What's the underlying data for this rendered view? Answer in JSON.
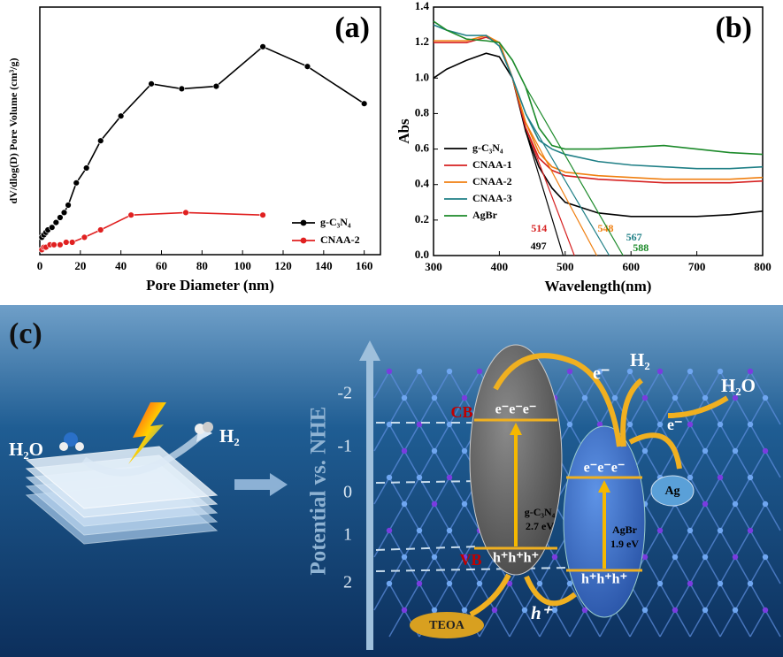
{
  "chart_data": [
    {
      "type": "line",
      "panel_label": "(a)",
      "xlabel": "Pore Diameter (nm)",
      "ylabel": "dV/dlog(D) Pore Volume (cm³/g)",
      "xlim": [
        0,
        168
      ],
      "ylim": [
        0,
        1
      ],
      "xticks": [
        0,
        20,
        40,
        60,
        80,
        100,
        120,
        140,
        160
      ],
      "markers": true,
      "legend": "lower right",
      "series": [
        {
          "name": "g-C₃N₄",
          "color": "#000000",
          "x": [
            1,
            2,
            3,
            4,
            6,
            8,
            10,
            12,
            14,
            18,
            23,
            30,
            40,
            55,
            70,
            87,
            110,
            132,
            160
          ],
          "values": [
            0.07,
            0.08,
            0.09,
            0.1,
            0.11,
            0.13,
            0.15,
            0.17,
            0.2,
            0.29,
            0.35,
            0.46,
            0.56,
            0.69,
            0.67,
            0.68,
            0.84,
            0.76,
            0.61
          ]
        },
        {
          "name": "CNAA-2",
          "color": "#e02020",
          "x": [
            1,
            2,
            3,
            5,
            7,
            10,
            13,
            16,
            22,
            30,
            45,
            72,
            110
          ],
          "values": [
            0.02,
            0.03,
            0.03,
            0.04,
            0.04,
            0.04,
            0.05,
            0.05,
            0.07,
            0.1,
            0.16,
            0.17,
            0.16
          ]
        }
      ]
    },
    {
      "type": "line",
      "panel_label": "(b)",
      "xlabel": "Wavelength(nm)",
      "ylabel": "Abs",
      "xlim": [
        300,
        800
      ],
      "ylim": [
        0,
        1.4
      ],
      "xticks": [
        300,
        400,
        500,
        600,
        700,
        800
      ],
      "yticks": [
        {
          "value": 0,
          "label": "0.0"
        },
        0.2,
        0.4,
        0.6,
        0.8,
        {
          "value": 1,
          "label": "1.0"
        },
        1.2,
        1.4
      ],
      "markers": false,
      "legend": "center left",
      "x": [
        300,
        320,
        350,
        380,
        400,
        420,
        440,
        460,
        480,
        500,
        550,
        600,
        650,
        700,
        750,
        800
      ],
      "series": [
        {
          "name": "g-C₃N₄",
          "color": "#000000",
          "values": [
            1.0,
            1.05,
            1.1,
            1.14,
            1.12,
            1.0,
            0.7,
            0.5,
            0.38,
            0.3,
            0.24,
            0.22,
            0.22,
            0.22,
            0.23,
            0.25
          ]
        },
        {
          "name": "CNAA-1",
          "color": "#d62020",
          "values": [
            1.2,
            1.2,
            1.2,
            1.23,
            1.2,
            1.0,
            0.72,
            0.55,
            0.48,
            0.45,
            0.43,
            0.42,
            0.41,
            0.41,
            0.41,
            0.42
          ]
        },
        {
          "name": "CNAA-2",
          "color": "#f07f10",
          "values": [
            1.21,
            1.21,
            1.21,
            1.24,
            1.2,
            1.0,
            0.75,
            0.58,
            0.5,
            0.47,
            0.45,
            0.44,
            0.43,
            0.43,
            0.43,
            0.44
          ]
        },
        {
          "name": "CNAA-3",
          "color": "#1f7f86",
          "values": [
            1.3,
            1.27,
            1.24,
            1.24,
            1.18,
            1.0,
            0.8,
            0.65,
            0.6,
            0.57,
            0.53,
            0.51,
            0.5,
            0.49,
            0.49,
            0.5
          ]
        },
        {
          "name": "AgBr",
          "color": "#1c8a2a",
          "values": [
            1.32,
            1.27,
            1.22,
            1.21,
            1.2,
            1.1,
            0.95,
            0.72,
            0.62,
            0.6,
            0.6,
            0.61,
            0.62,
            0.6,
            0.58,
            0.57
          ]
        }
      ],
      "band_edges": [
        {
          "value": 497
        },
        {
          "value": 514
        },
        {
          "value": 548
        },
        {
          "value": 567
        },
        {
          "value": 588
        }
      ]
    }
  ],
  "diagram": {
    "panel_label": "(c)",
    "left_reactant": "H₂O",
    "left_product": "H₂",
    "axis_label": "Potential vs. NHE",
    "axis_ticks": [
      "-2",
      "-1",
      "0",
      "1",
      "2"
    ],
    "cb_label": "CB",
    "vb_label": "VB",
    "gcn": {
      "electrons": "e⁻e⁻e⁻",
      "holes": "h⁺h⁺h⁺",
      "name": "g-C₃N₄",
      "gap": "2.7 eV"
    },
    "agbr": {
      "electrons": "e⁻e⁻e⁻",
      "holes": "h⁺h⁺h⁺",
      "name": "AgBr",
      "gap": "1.9 eV"
    },
    "electron_labels": [
      "e⁻",
      "e⁻"
    ],
    "right_product": "H₂",
    "right_reactant": "H₂O",
    "ag": "Ag",
    "teoa": "TEOA",
    "hole_label": "h⁺"
  }
}
